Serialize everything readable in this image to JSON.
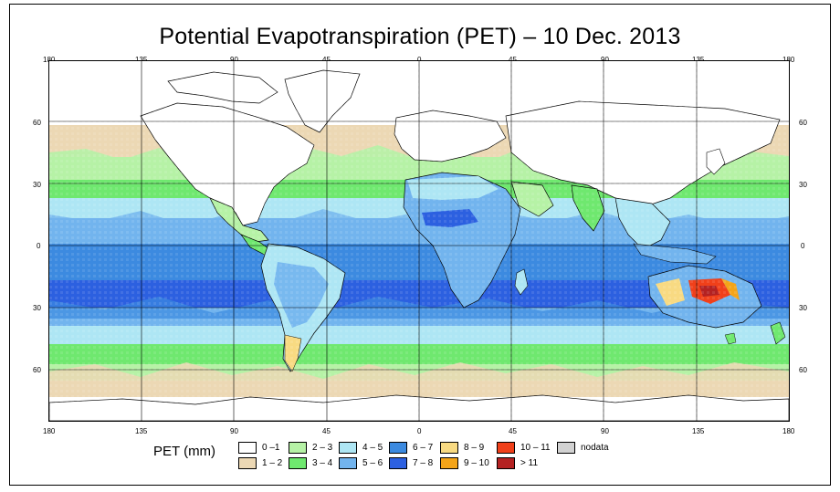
{
  "title": "Potential Evapotranspiration (PET) – 10 Dec. 2013",
  "axes": {
    "lon_top": [
      "180",
      "135",
      "90",
      "45",
      "0",
      "45",
      "90",
      "135",
      "180"
    ],
    "lon_bottom": [
      "180",
      "135",
      "90",
      "45",
      "0",
      "45",
      "90",
      "135",
      "180"
    ],
    "lat_left": [
      "60",
      "30",
      "0",
      "30",
      "60"
    ],
    "lat_right": [
      "60",
      "30",
      "0",
      "30",
      "60"
    ]
  },
  "legend": {
    "title": "PET (mm)",
    "items": [
      {
        "label": "0 –1",
        "color": "#ffffff"
      },
      {
        "label": "1 – 2",
        "color": "#ecd8b4"
      },
      {
        "label": "2 – 3",
        "color": "#b6f2a6"
      },
      {
        "label": "3 – 4",
        "color": "#6fe86f"
      },
      {
        "label": "4 – 5",
        "color": "#aee6f4"
      },
      {
        "label": "5 – 6",
        "color": "#72b4ee"
      },
      {
        "label": "6 – 7",
        "color": "#3c8ae0"
      },
      {
        "label": "7 – 8",
        "color": "#2c60e0"
      },
      {
        "label": "8 – 9",
        "color": "#f8da82"
      },
      {
        "label": "9 – 10",
        "color": "#f4a418"
      },
      {
        "label": "10 – 11",
        "color": "#f0401a"
      },
      {
        "label": "> 11",
        "color": "#b42222"
      },
      {
        "label": "nodata",
        "color": "#d2d2d2"
      }
    ]
  }
}
